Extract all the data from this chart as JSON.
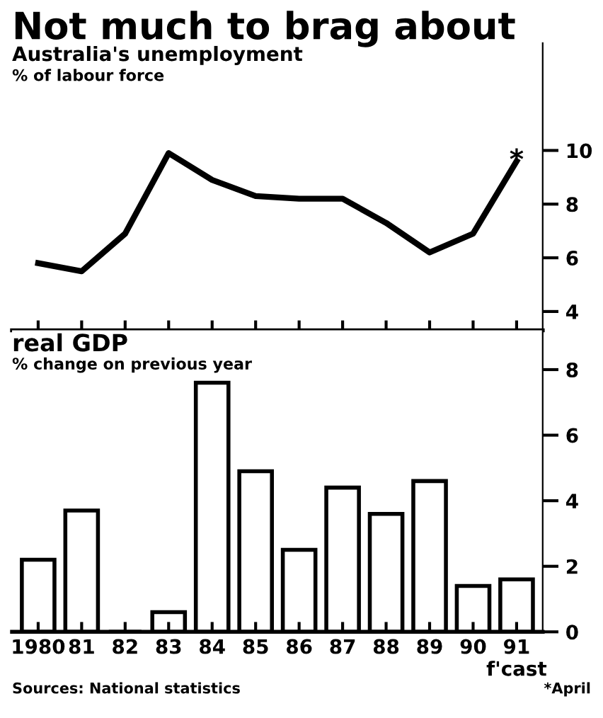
{
  "chart_data": [
    {
      "type": "line",
      "title": "Not much to brag about",
      "subtitle": "Australia's unemployment",
      "ylabel": "% of labour force",
      "categories": [
        "1980",
        "81",
        "82",
        "83",
        "84",
        "85",
        "86",
        "87",
        "88",
        "89",
        "90",
        "91"
      ],
      "series": [
        {
          "color": "#000000",
          "values": [
            5.8,
            5.5,
            6.9,
            9.9,
            8.9,
            8.3,
            8.2,
            8.2,
            7.3,
            6.2,
            6.9,
            9.6
          ]
        }
      ],
      "ylim": [
        3.3,
        14
      ],
      "yticks": [
        4,
        6,
        8,
        10
      ],
      "tick_labels": "y",
      "grid": false,
      "legend": false,
      "marker": "none",
      "line_style": "solid",
      "annotations": [
        {
          "text": "*",
          "x": "91",
          "y": 9.6
        }
      ]
    },
    {
      "type": "bar",
      "title": "real GDP",
      "ylabel": "% change on previous year",
      "categories": [
        "1980",
        "81",
        "82",
        "83",
        "84",
        "85",
        "86",
        "87",
        "88",
        "89",
        "90",
        "91\nf'cast"
      ],
      "series": [
        {
          "color": "#ffffff",
          "values": [
            2.2,
            3.7,
            0,
            0.6,
            7.6,
            4.9,
            2.5,
            4.4,
            3.6,
            4.6,
            1.4,
            1.6
          ]
        }
      ],
      "ylim": [
        0,
        9.2
      ],
      "yticks": [
        0,
        2,
        4,
        6,
        8
      ],
      "grid": false,
      "legend": false,
      "annotations": [
        "Sources: National statistics",
        "*April"
      ]
    }
  ]
}
